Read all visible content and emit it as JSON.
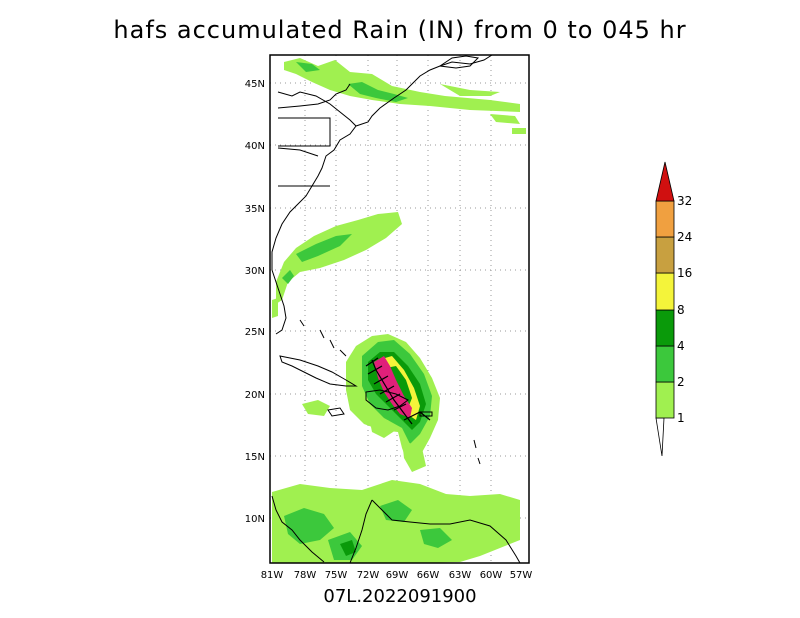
{
  "title": "hafs accumulated Rain (IN) from 0 to 045 hr",
  "subtitle": "07L.2022091900",
  "lat_labels": [
    "45N",
    "40N",
    "35N",
    "30N",
    "25N",
    "20N",
    "15N",
    "10N"
  ],
  "lon_labels": [
    "81W",
    "78W",
    "75W",
    "72W",
    "69W",
    "66W",
    "63W",
    "60W",
    "57W"
  ],
  "colorbar": {
    "labels": [
      "1",
      "2",
      "4",
      "8",
      "16",
      "24",
      "32"
    ],
    "colors": [
      "#a0f050",
      "#3cc83c",
      "#0a9a0a",
      "#f4f43a",
      "#c8a040",
      "#f0a040",
      "#d01010"
    ]
  },
  "map": {
    "extent": {
      "lon_min": -81,
      "lon_max": -57,
      "lat_min": 6.5,
      "lat_max": 47.5
    },
    "gridlines": "dotted",
    "track_color": "#000000"
  }
}
